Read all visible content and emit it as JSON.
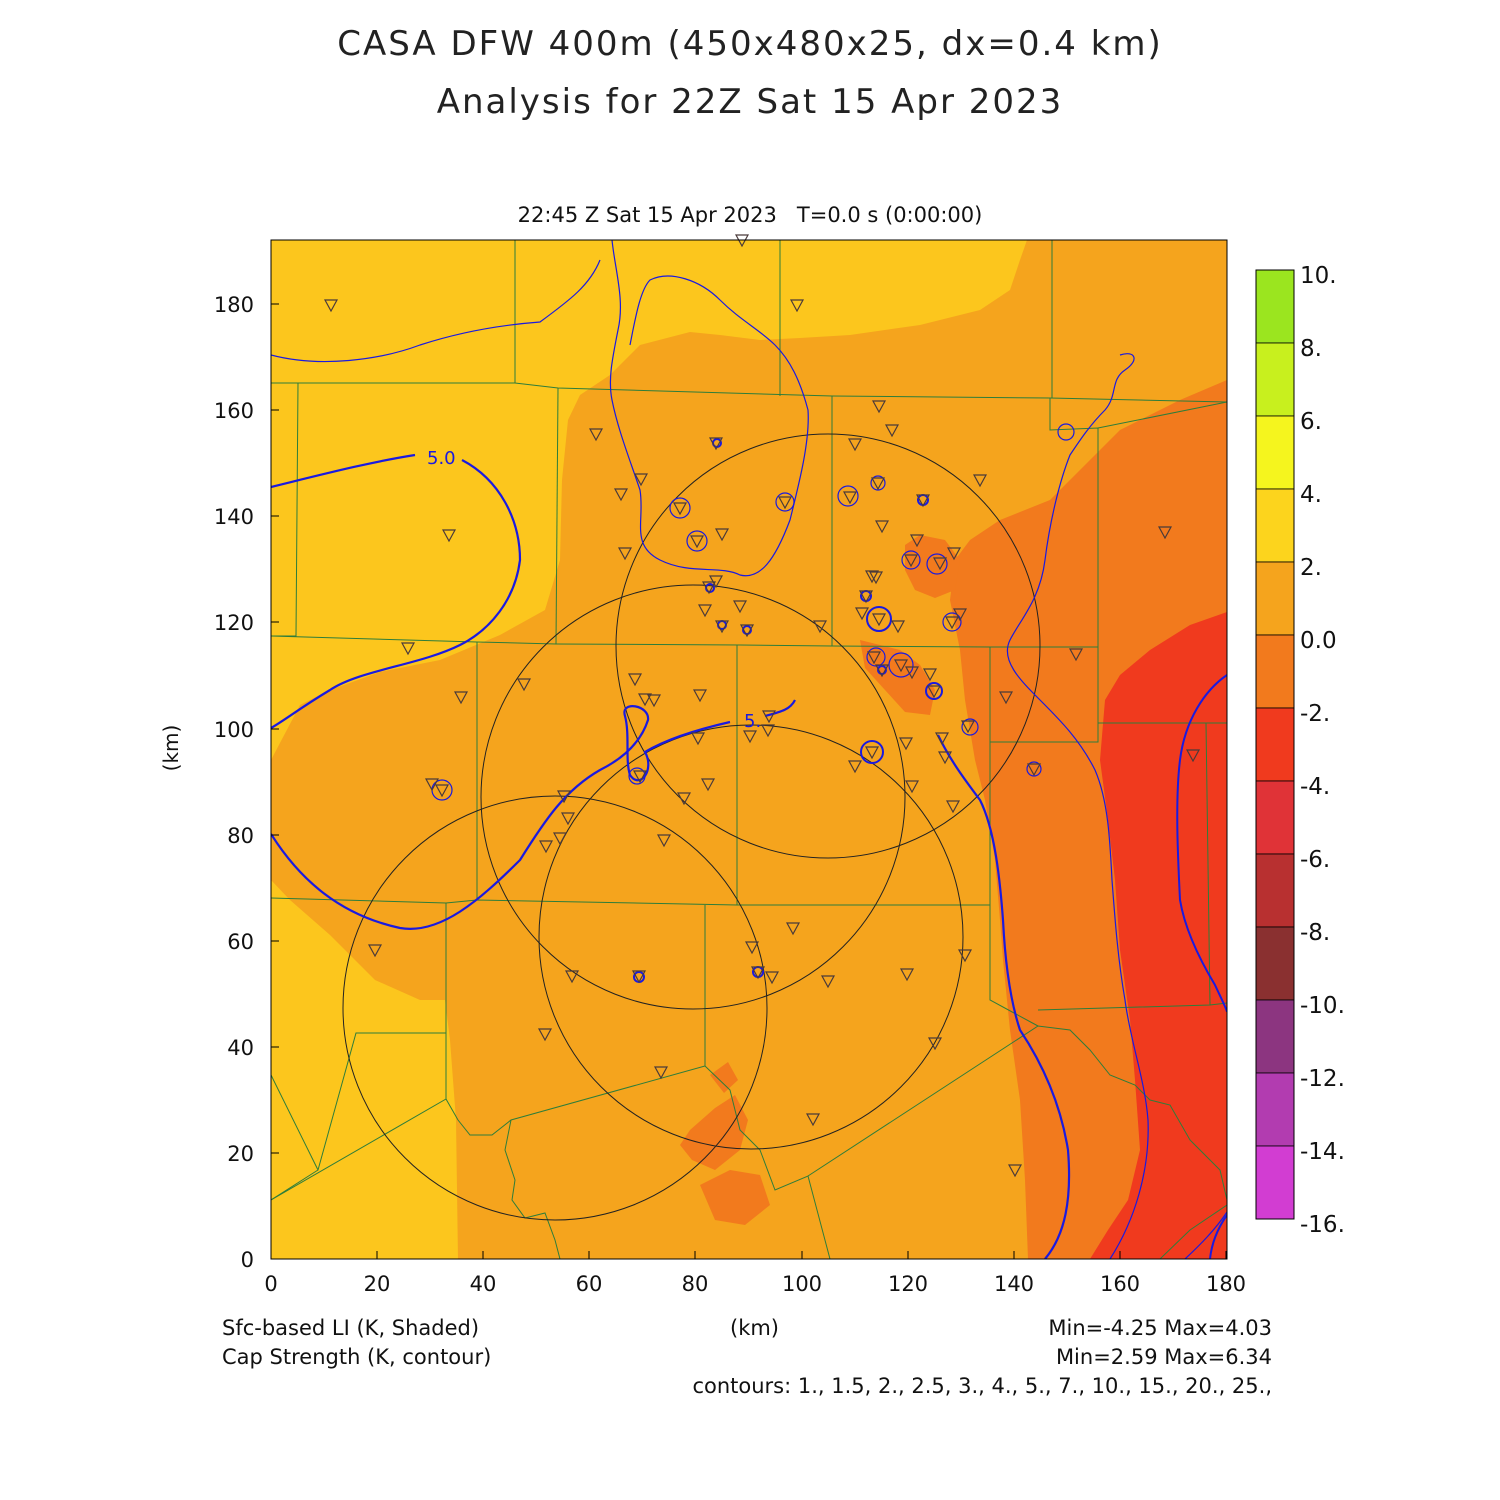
{
  "title": {
    "line1": "CASA DFW 400m (450x480x25, dx=0.4 km)",
    "line2": "Analysis for 22Z Sat 15 Apr 2023"
  },
  "timestamp": "22:45 Z Sat 15 Apr 2023   T=0.0 s (0:00:00)",
  "axes": {
    "x_unit": "(km)",
    "y_unit": "(km)",
    "x_ticks": [
      "0",
      "20",
      "40",
      "60",
      "80",
      "100",
      "120",
      "140",
      "160",
      "180"
    ],
    "y_ticks": [
      "0",
      "20",
      "40",
      "60",
      "80",
      "100",
      "120",
      "140",
      "160",
      "180"
    ]
  },
  "colorbar": {
    "labels": [
      "10.",
      "8.",
      "6.",
      "4.",
      "2.",
      "0.0",
      "-2.",
      "-4.",
      "-6.",
      "-8.",
      "-10.",
      "-12.",
      "-14.",
      "-16."
    ],
    "colors": [
      "#9be51f",
      "#c8f01e",
      "#f5f51e",
      "#fcd41d",
      "#f5a41d",
      "#f27a1d",
      "#f03a1e",
      "#e03337",
      "#b83030",
      "#8a3030",
      "#8c3580",
      "#b23cb0",
      "#d23dd2"
    ]
  },
  "contour_labels": [
    "5.0",
    "5."
  ],
  "footer": {
    "shaded_label": "Sfc-based LI (K, Shaded)",
    "contour_label": "Cap Strength (K, contour)",
    "shaded_range": "Min=-4.25 Max=4.03",
    "contour_range": "Min=2.59 Max=6.34",
    "contours": "contours: 1., 1.5, 2., 2.5, 3., 4., 5., 7., 10., 15., 20., 25.,"
  },
  "colors": {
    "field_2_4": "#fcc61d",
    "field_0_2": "#f5a41d",
    "field_m2_0": "#f27a1d",
    "field_m4_m2": "#f03a1e",
    "county_lines": "#2e7d3a",
    "contour_blue": "#1a1ae0"
  }
}
